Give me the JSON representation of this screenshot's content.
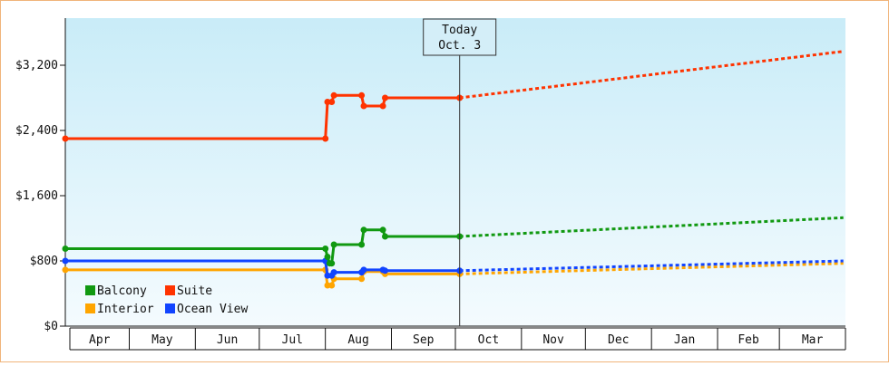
{
  "chart_data": {
    "type": "line",
    "title": "",
    "xlabel": "",
    "ylabel": "",
    "y_ticks": [
      "$0",
      "$800",
      "$1,600",
      "$2,400",
      "$3,200"
    ],
    "ylim": [
      0,
      3200
    ],
    "months": [
      "Apr",
      "May",
      "Jun",
      "Jul",
      "Aug",
      "Sep",
      "Oct",
      "Nov",
      "Dec",
      "Jan",
      "Feb",
      "Mar"
    ],
    "today": {
      "line1": "Today",
      "line2": "Oct. 3",
      "date": "2023-10-03"
    },
    "legend_position": "bottom-left",
    "series": [
      {
        "name": "Suite",
        "color": "#ff3300",
        "actual": [
          [
            "2023-04-01",
            2300
          ],
          [
            "2023-08-01",
            2300
          ],
          [
            "2023-08-02",
            2750
          ],
          [
            "2023-08-04",
            2750
          ],
          [
            "2023-08-05",
            2830
          ],
          [
            "2023-08-18",
            2830
          ],
          [
            "2023-08-19",
            2700
          ],
          [
            "2023-08-28",
            2700
          ],
          [
            "2023-08-29",
            2800
          ],
          [
            "2023-10-03",
            2800
          ]
        ],
        "forecast": [
          [
            "2023-10-03",
            2800
          ],
          [
            "2024-03-31",
            3370
          ]
        ]
      },
      {
        "name": "Balcony",
        "color": "#119911",
        "actual": [
          [
            "2023-04-01",
            950
          ],
          [
            "2023-08-01",
            950
          ],
          [
            "2023-08-02",
            850
          ],
          [
            "2023-08-03",
            770
          ],
          [
            "2023-08-04",
            770
          ],
          [
            "2023-08-05",
            1000
          ],
          [
            "2023-08-18",
            1000
          ],
          [
            "2023-08-19",
            1180
          ],
          [
            "2023-08-28",
            1180
          ],
          [
            "2023-08-29",
            1100
          ],
          [
            "2023-10-03",
            1100
          ]
        ],
        "forecast": [
          [
            "2023-10-03",
            1100
          ],
          [
            "2024-03-31",
            1330
          ]
        ]
      },
      {
        "name": "Ocean View",
        "color": "#1144ff",
        "actual": [
          [
            "2023-04-01",
            800
          ],
          [
            "2023-08-01",
            800
          ],
          [
            "2023-08-02",
            620
          ],
          [
            "2023-08-04",
            620
          ],
          [
            "2023-08-05",
            660
          ],
          [
            "2023-08-18",
            660
          ],
          [
            "2023-08-19",
            690
          ],
          [
            "2023-08-28",
            690
          ],
          [
            "2023-08-29",
            680
          ],
          [
            "2023-10-03",
            680
          ]
        ],
        "forecast": [
          [
            "2023-10-03",
            680
          ],
          [
            "2024-03-31",
            800
          ]
        ]
      },
      {
        "name": "Interior",
        "color": "#ffa500",
        "actual": [
          [
            "2023-04-01",
            690
          ],
          [
            "2023-08-01",
            690
          ],
          [
            "2023-08-02",
            500
          ],
          [
            "2023-08-04",
            500
          ],
          [
            "2023-08-05",
            580
          ],
          [
            "2023-08-18",
            580
          ],
          [
            "2023-08-19",
            670
          ],
          [
            "2023-08-28",
            670
          ],
          [
            "2023-08-29",
            640
          ],
          [
            "2023-10-03",
            640
          ]
        ],
        "forecast": [
          [
            "2023-10-03",
            640
          ],
          [
            "2024-03-31",
            770
          ]
        ]
      }
    ],
    "legend": [
      {
        "name": "Balcony",
        "color": "#119911"
      },
      {
        "name": "Suite",
        "color": "#ff3300"
      },
      {
        "name": "Interior",
        "color": "#ffa500"
      },
      {
        "name": "Ocean View",
        "color": "#1144ff"
      }
    ]
  }
}
